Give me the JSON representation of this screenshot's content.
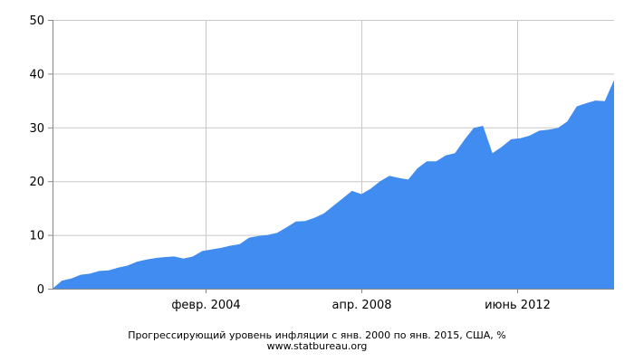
{
  "chart_data": {
    "type": "area",
    "title": "Прогрессирующий уровень инфляции с янв. 2000 по янв. 2015, США, %",
    "source": "www.statbureau.org",
    "xlabel": "",
    "ylabel": "",
    "x_range": [
      "2000-01",
      "2015-01"
    ],
    "ylim": [
      0,
      50
    ],
    "y_ticks": [
      0,
      10,
      20,
      30,
      40,
      50
    ],
    "x_ticks": [
      {
        "date": "2004-02",
        "label": "февр. 2004"
      },
      {
        "date": "2008-04",
        "label": "апр. 2008"
      },
      {
        "date": "2012-06",
        "label": "июнь 2012"
      }
    ],
    "grid": true,
    "fill_color": "#418cf0",
    "series": [
      {
        "points": [
          [
            "2000-01",
            0.0
          ],
          [
            "2000-04",
            1.5
          ],
          [
            "2000-07",
            1.9
          ],
          [
            "2000-10",
            2.6
          ],
          [
            "2001-01",
            2.8
          ],
          [
            "2001-04",
            3.3
          ],
          [
            "2001-07",
            3.4
          ],
          [
            "2001-10",
            3.9
          ],
          [
            "2002-01",
            4.3
          ],
          [
            "2002-04",
            5.0
          ],
          [
            "2002-07",
            5.4
          ],
          [
            "2002-10",
            5.7
          ],
          [
            "2003-01",
            5.9
          ],
          [
            "2003-04",
            6.0
          ],
          [
            "2003-07",
            5.6
          ],
          [
            "2003-10",
            6.0
          ],
          [
            "2004-01",
            7.0
          ],
          [
            "2004-04",
            7.3
          ],
          [
            "2004-07",
            7.6
          ],
          [
            "2004-10",
            8.0
          ],
          [
            "2005-01",
            8.3
          ],
          [
            "2005-04",
            9.5
          ],
          [
            "2005-07",
            9.8
          ],
          [
            "2005-10",
            10.0
          ],
          [
            "2006-01",
            10.4
          ],
          [
            "2006-04",
            11.4
          ],
          [
            "2006-07",
            12.5
          ],
          [
            "2006-10",
            12.6
          ],
          [
            "2007-01",
            13.2
          ],
          [
            "2007-04",
            14.0
          ],
          [
            "2007-07",
            15.4
          ],
          [
            "2007-10",
            16.8
          ],
          [
            "2008-01",
            18.2
          ],
          [
            "2008-04",
            17.6
          ],
          [
            "2008-07",
            18.6
          ],
          [
            "2008-10",
            20.0
          ],
          [
            "2009-01",
            21.0
          ],
          [
            "2009-04",
            20.6
          ],
          [
            "2009-07",
            20.3
          ],
          [
            "2009-10",
            22.4
          ],
          [
            "2010-01",
            23.7
          ],
          [
            "2010-04",
            23.7
          ],
          [
            "2010-07",
            24.8
          ],
          [
            "2010-10",
            25.2
          ],
          [
            "2011-01",
            27.7
          ],
          [
            "2011-04",
            29.9
          ],
          [
            "2011-07",
            30.3
          ],
          [
            "2011-10",
            25.2
          ],
          [
            "2012-01",
            26.4
          ],
          [
            "2012-04",
            27.8
          ],
          [
            "2012-07",
            28.0
          ],
          [
            "2012-10",
            28.5
          ],
          [
            "2013-01",
            29.4
          ],
          [
            "2013-04",
            29.6
          ],
          [
            "2013-07",
            29.9
          ],
          [
            "2013-10",
            31.1
          ],
          [
            "2014-01",
            33.9
          ],
          [
            "2014-04",
            34.5
          ],
          [
            "2014-07",
            35.0
          ],
          [
            "2014-10",
            34.9
          ],
          [
            "2015-01",
            38.8
          ]
        ]
      }
    ]
  }
}
